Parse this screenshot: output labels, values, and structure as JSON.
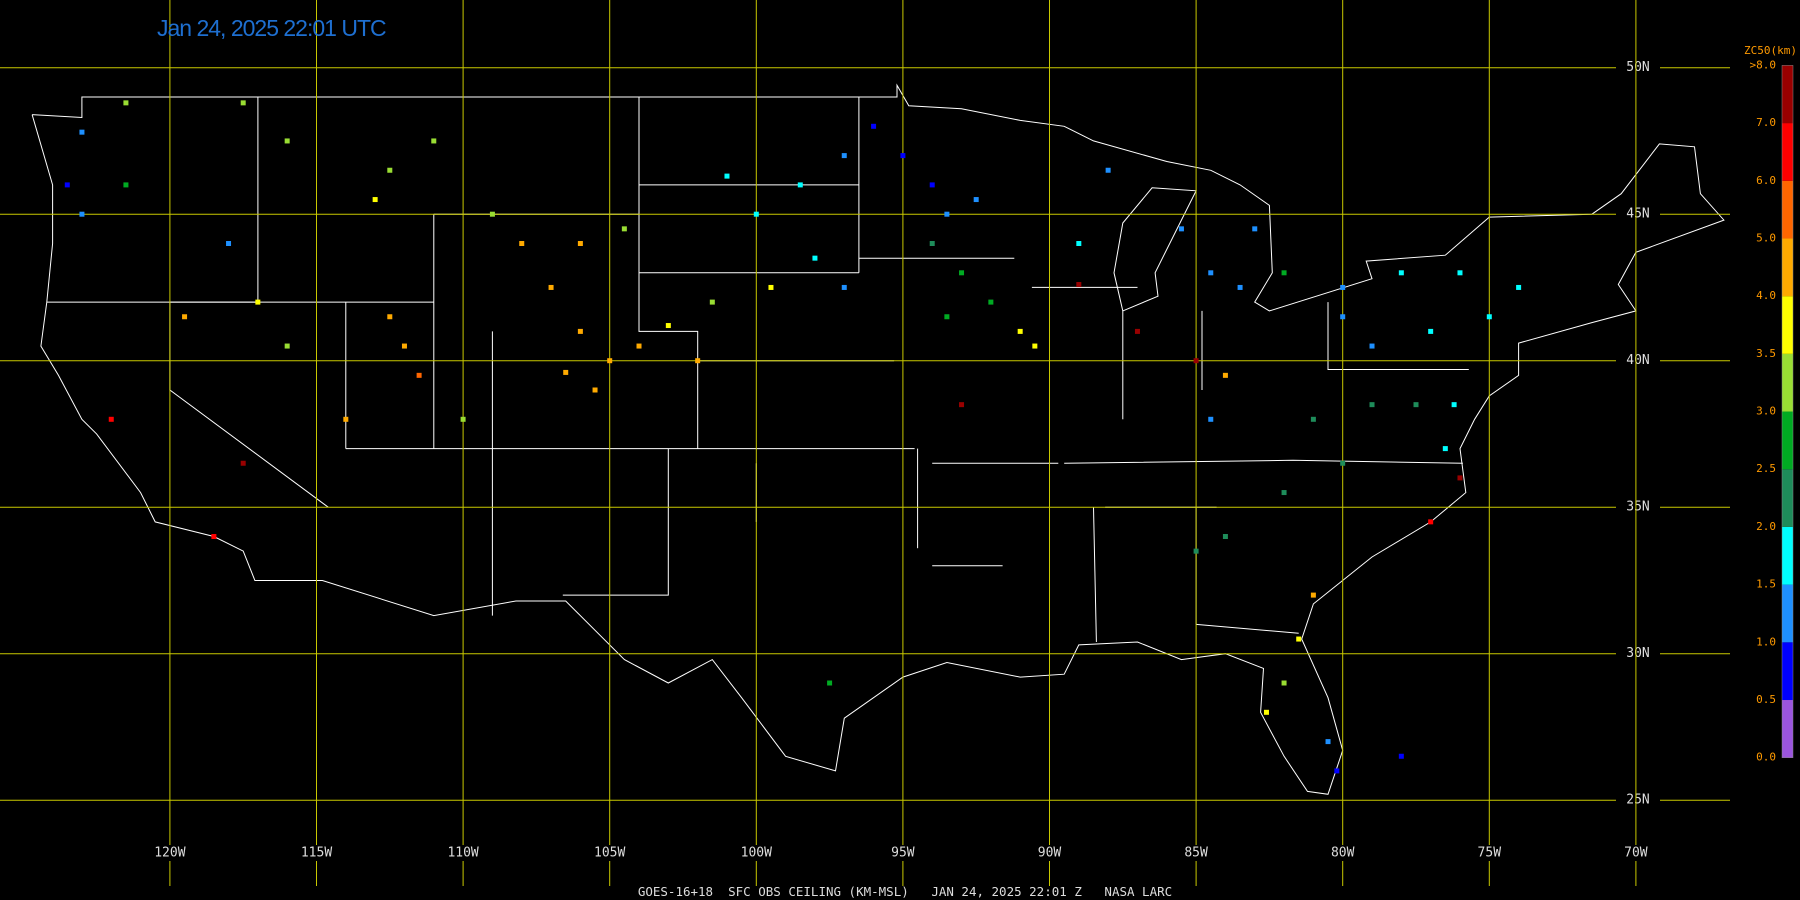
{
  "title": "Jan 24, 2025 22:01 UTC",
  "footer": "GOES-16+18  SFC OBS CEILING (KM-MSL)   JAN 24, 2025 22:01 Z   NASA LARC",
  "grid": {
    "lat": [
      {
        "value": 50,
        "label": "50N"
      },
      {
        "value": 45,
        "label": "45N"
      },
      {
        "value": 40,
        "label": "40N"
      },
      {
        "value": 35,
        "label": "35N"
      },
      {
        "value": 30,
        "label": "30N"
      },
      {
        "value": 25,
        "label": "25N"
      }
    ],
    "lon": [
      {
        "value": -120,
        "label": "120W"
      },
      {
        "value": -115,
        "label": "115W"
      },
      {
        "value": -110,
        "label": "110W"
      },
      {
        "value": -105,
        "label": "105W"
      },
      {
        "value": -100,
        "label": "100W"
      },
      {
        "value": -95,
        "label": "95W"
      },
      {
        "value": -90,
        "label": "90W"
      },
      {
        "value": -85,
        "label": "85W"
      },
      {
        "value": -80,
        "label": "80W"
      },
      {
        "value": -75,
        "label": "75W"
      },
      {
        "value": -70,
        "label": "70W"
      }
    ]
  },
  "legend": {
    "title": "ZC50(km)",
    "ticks": [
      {
        "value": 0,
        "label": "0.0"
      },
      0.5,
      {
        "value": 1,
        "label": "1.0"
      },
      1.5,
      {
        "value": 2,
        "label": "2.0"
      },
      2.5,
      {
        "value": 3,
        "label": "3.0"
      },
      3.5,
      {
        "value": 4,
        "label": "4.0"
      },
      {
        "value": 5,
        "label": "5.0"
      },
      {
        "value": 6,
        "label": "6.0"
      },
      {
        "value": 7,
        "label": "7.0"
      },
      {
        "value": 8,
        "label": ">8.0"
      }
    ],
    "colors": [
      "#9b55dd",
      "#0000ff",
      "#1e90ff",
      "#00ffff",
      "#1e8c5a",
      "#00aa22",
      "#99dd33",
      "#ffff00",
      "#ffaa00",
      "#ff6600",
      "#ff0000",
      "#990000"
    ]
  },
  "stations": [
    {
      "lon": -112.5,
      "lat": 46.5,
      "value": 3.0
    },
    {
      "lon": -111,
      "lat": 47.5,
      "value": 3.0
    },
    {
      "lon": -113,
      "lat": 45.5,
      "value": 3.7
    },
    {
      "lon": -109,
      "lat": 45,
      "value": 3.0
    },
    {
      "lon": -108,
      "lat": 44,
      "value": 4.2
    },
    {
      "lon": -106,
      "lat": 44,
      "value": 4.1
    },
    {
      "lon": -104.5,
      "lat": 44.5,
      "value": 3.0
    },
    {
      "lon": -107,
      "lat": 42.5,
      "value": 4.5
    },
    {
      "lon": -106,
      "lat": 41,
      "value": 4.3
    },
    {
      "lon": -105,
      "lat": 40,
      "value": 4.4
    },
    {
      "lon": -106.5,
      "lat": 39.6,
      "value": 4.4
    },
    {
      "lon": -105.5,
      "lat": 39,
      "value": 4.4
    },
    {
      "lon": -104,
      "lat": 40.5,
      "value": 4.3
    },
    {
      "lon": -102,
      "lat": 40,
      "value": 4.4
    },
    {
      "lon": -103,
      "lat": 41.2,
      "value": 3.5
    },
    {
      "lon": -101.5,
      "lat": 42,
      "value": 3.2
    },
    {
      "lon": -99.5,
      "lat": 42.5,
      "value": 3.8
    },
    {
      "lon": -98,
      "lat": 43.5,
      "value": 1.7
    },
    {
      "lon": -100,
      "lat": 45,
      "value": 1.7
    },
    {
      "lon": -98.5,
      "lat": 46,
      "value": 1.8
    },
    {
      "lon": -101,
      "lat": 46.3,
      "value": 1.9
    },
    {
      "lon": -97,
      "lat": 47,
      "value": 1.4
    },
    {
      "lon": -96,
      "lat": 48,
      "value": 0.9
    },
    {
      "lon": -95,
      "lat": 47,
      "value": 0.8
    },
    {
      "lon": -94,
      "lat": 46,
      "value": 0.9
    },
    {
      "lon": -93.5,
      "lat": 45,
      "value": 1.3
    },
    {
      "lon": -92.5,
      "lat": 45.5,
      "value": 1.3
    },
    {
      "lon": -94,
      "lat": 44,
      "value": 2.2
    },
    {
      "lon": -93,
      "lat": 43,
      "value": 2.8
    },
    {
      "lon": -92,
      "lat": 42,
      "value": 2.9
    },
    {
      "lon": -91,
      "lat": 41,
      "value": 3.6
    },
    {
      "lon": -90.5,
      "lat": 40.5,
      "value": 3.6
    },
    {
      "lon": -93,
      "lat": 38.5,
      "value": 7.2
    },
    {
      "lon": -89,
      "lat": 42.6,
      "value": 7.0
    },
    {
      "lon": -89,
      "lat": 44,
      "value": 1.7
    },
    {
      "lon": -88,
      "lat": 46.5,
      "value": 1.0
    },
    {
      "lon": -85.5,
      "lat": 44.5,
      "value": 1.2
    },
    {
      "lon": -84.5,
      "lat": 43,
      "value": 1.3
    },
    {
      "lon": -83.5,
      "lat": 42.5,
      "value": 1.3
    },
    {
      "lon": -83,
      "lat": 44.5,
      "value": 1.2
    },
    {
      "lon": -82,
      "lat": 43,
      "value": 2.8
    },
    {
      "lon": -80,
      "lat": 42.5,
      "value": 1.3
    },
    {
      "lon": -78,
      "lat": 43,
      "value": 1.7
    },
    {
      "lon": -76,
      "lat": 43,
      "value": 1.7
    },
    {
      "lon": -74,
      "lat": 42.5,
      "value": 1.8
    },
    {
      "lon": -75,
      "lat": 41.5,
      "value": 1.7
    },
    {
      "lon": -77,
      "lat": 41,
      "value": 1.6
    },
    {
      "lon": -79,
      "lat": 40.5,
      "value": 1.3
    },
    {
      "lon": -80,
      "lat": 41.5,
      "value": 1.3
    },
    {
      "lon": -84.5,
      "lat": 38,
      "value": 1.3
    },
    {
      "lon": -81,
      "lat": 38,
      "value": 2.3
    },
    {
      "lon": -79,
      "lat": 38.5,
      "value": 2.2
    },
    {
      "lon": -77.5,
      "lat": 38.5,
      "value": 2.3
    },
    {
      "lon": -76.5,
      "lat": 37,
      "value": 1.6
    },
    {
      "lon": -76.2,
      "lat": 38.5,
      "value": 1.7
    },
    {
      "lon": -80,
      "lat": 36.5,
      "value": 2.2
    },
    {
      "lon": -82,
      "lat": 35.5,
      "value": 2.3
    },
    {
      "lon": -84,
      "lat": 34,
      "value": 2.3
    },
    {
      "lon": -85,
      "lat": 33.5,
      "value": 2.3
    },
    {
      "lon": -81,
      "lat": 32,
      "value": 4.2
    },
    {
      "lon": -81.5,
      "lat": 30.5,
      "value": 3.7
    },
    {
      "lon": -82,
      "lat": 29,
      "value": 3.3
    },
    {
      "lon": -82.6,
      "lat": 28,
      "value": 3.7
    },
    {
      "lon": -80.5,
      "lat": 27,
      "value": 1.3
    },
    {
      "lon": -80.2,
      "lat": 26,
      "value": 0.9
    },
    {
      "lon": -78,
      "lat": 26.5,
      "value": 0.9
    },
    {
      "lon": -76,
      "lat": 36,
      "value": 7.0
    },
    {
      "lon": -77,
      "lat": 34.5,
      "value": 6.8
    },
    {
      "lon": -118.5,
      "lat": 34,
      "value": 6.5
    },
    {
      "lon": -117.5,
      "lat": 36.5,
      "value": 7.5
    },
    {
      "lon": -122,
      "lat": 38,
      "value": 6.8
    },
    {
      "lon": -123.5,
      "lat": 46,
      "value": 0.9
    },
    {
      "lon": -123,
      "lat": 45,
      "value": 1.0
    },
    {
      "lon": -121.5,
      "lat": 46,
      "value": 2.8
    },
    {
      "lon": -123,
      "lat": 47.8,
      "value": 1.0
    },
    {
      "lon": -121.5,
      "lat": 48.8,
      "value": 3.1
    },
    {
      "lon": -117.5,
      "lat": 48.8,
      "value": 3.0
    },
    {
      "lon": -116,
      "lat": 47.5,
      "value": 3.1
    },
    {
      "lon": -118,
      "lat": 44,
      "value": 1.3
    },
    {
      "lon": -117,
      "lat": 42,
      "value": 3.8
    },
    {
      "lon": -119.5,
      "lat": 41.5,
      "value": 4.6
    },
    {
      "lon": -116,
      "lat": 40.5,
      "value": 3.4
    },
    {
      "lon": -112.5,
      "lat": 41.5,
      "value": 4.0
    },
    {
      "lon": -112,
      "lat": 40.5,
      "value": 4.0
    },
    {
      "lon": -111.5,
      "lat": 39.5,
      "value": 5.2
    },
    {
      "lon": -114,
      "lat": 38,
      "value": 4.0
    },
    {
      "lon": -110,
      "lat": 38,
      "value": 3.0
    },
    {
      "lon": -97.5,
      "lat": 29,
      "value": 2.5
    },
    {
      "lon": -87,
      "lat": 41,
      "value": 7.3
    },
    {
      "lon": -85,
      "lat": 40,
      "value": 7.2
    },
    {
      "lon": -84,
      "lat": 39.5,
      "value": 4.0
    },
    {
      "lon": -93.5,
      "lat": 41.5,
      "value": 2.9
    },
    {
      "lon": -97,
      "lat": 42.5,
      "value": 1.4
    }
  ]
}
